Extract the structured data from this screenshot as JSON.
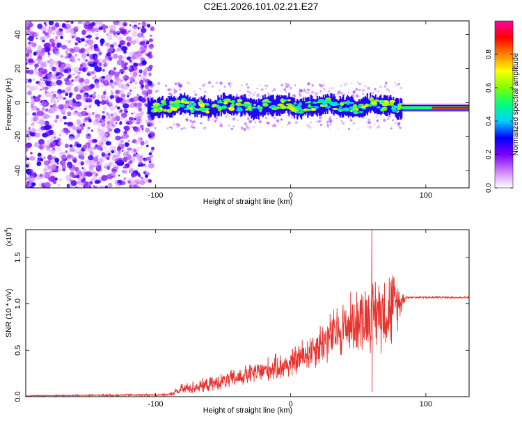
{
  "title": "C2E1.2026.101.02.21.E27",
  "chart_data": [
    {
      "type": "heatmap",
      "name": "spectrogram",
      "xlabel": "Height of straight line (km)",
      "ylabel": "Frequency (Hz)",
      "xlim": [
        -196,
        132
      ],
      "ylim": [
        -50,
        48
      ],
      "xticks": [
        -100,
        0,
        100
      ],
      "xtick_labels": [
        "-100",
        "0",
        "100"
      ],
      "yticks": [
        -40,
        -20,
        0,
        20,
        40
      ],
      "ytick_labels": [
        "-40",
        "-20",
        "0",
        "20",
        "40"
      ],
      "noise_region_x": [
        -196,
        -106
      ],
      "signal_track": {
        "x_start": -106,
        "x_end": 132,
        "center_freq_hz": -2,
        "band_halfwidth_hz": 5,
        "tone_start_x": 82,
        "tone_freq_hz": -3
      },
      "colorbar": {
        "label": "Normalized spectral amplitude",
        "range": [
          0,
          1
        ],
        "ticks": [
          0.0,
          0.2,
          0.4,
          0.6,
          0.8
        ],
        "tick_labels": [
          "0.0",
          "0.2",
          "0.4",
          "0.6",
          "0.8"
        ],
        "colors": [
          "#ffffff",
          "#d080ff",
          "#7a00ff",
          "#0000ff",
          "#00d0ff",
          "#00ff80",
          "#80ff00",
          "#ffff00",
          "#ff8000",
          "#ff0000",
          "#ff00a0"
        ]
      }
    },
    {
      "type": "line",
      "name": "snr",
      "xlabel": "Height of straight line (km)",
      "ylabel": "SNR (10 * v/v)",
      "scale_note_base": "(x10",
      "scale_note_exp": "4",
      "scale_note_end": ")",
      "xlim": [
        -196,
        132
      ],
      "ylim": [
        0,
        1.8
      ],
      "xticks": [
        -100,
        0,
        100
      ],
      "xtick_labels": [
        "-100",
        "0",
        "100"
      ],
      "yticks": [
        0.0,
        0.5,
        1.0,
        1.5
      ],
      "ytick_labels": [
        "0.0",
        "0.5",
        "1.0",
        "1.5"
      ],
      "color": "#e8322e",
      "envelope_x": [
        -196,
        -90,
        -80,
        -60,
        -40,
        -20,
        0,
        20,
        40,
        60,
        75,
        85,
        132
      ],
      "envelope_mean": [
        0.01,
        0.02,
        0.08,
        0.13,
        0.2,
        0.28,
        0.35,
        0.55,
        0.75,
        0.9,
        0.95,
        1.07,
        1.07
      ],
      "envelope_spread": [
        0.005,
        0.01,
        0.05,
        0.06,
        0.08,
        0.1,
        0.12,
        0.18,
        0.25,
        0.3,
        0.35,
        0.01,
        0.01
      ],
      "spike_x": 60,
      "spike_max": 1.8,
      "spike_min": 0.05
    }
  ]
}
